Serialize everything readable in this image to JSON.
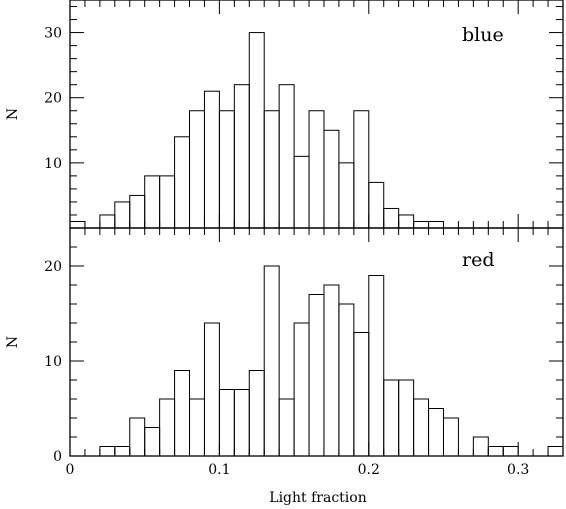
{
  "chart_data": [
    {
      "type": "bar",
      "panel": "top",
      "label": "blue",
      "ylabel": "N",
      "xlim": [
        0,
        0.33
      ],
      "ylim": [
        0,
        35
      ],
      "yticks": [
        10,
        20,
        30
      ],
      "bin_width": 0.01,
      "bins": [
        {
          "x0": 0.0,
          "value": 1
        },
        {
          "x0": 0.01,
          "value": 0
        },
        {
          "x0": 0.02,
          "value": 2
        },
        {
          "x0": 0.03,
          "value": 4
        },
        {
          "x0": 0.04,
          "value": 5
        },
        {
          "x0": 0.05,
          "value": 8
        },
        {
          "x0": 0.06,
          "value": 8
        },
        {
          "x0": 0.07,
          "value": 14
        },
        {
          "x0": 0.08,
          "value": 18
        },
        {
          "x0": 0.09,
          "value": 21
        },
        {
          "x0": 0.1,
          "value": 18
        },
        {
          "x0": 0.11,
          "value": 22
        },
        {
          "x0": 0.12,
          "value": 30
        },
        {
          "x0": 0.13,
          "value": 18
        },
        {
          "x0": 0.14,
          "value": 22
        },
        {
          "x0": 0.15,
          "value": 11
        },
        {
          "x0": 0.16,
          "value": 18
        },
        {
          "x0": 0.17,
          "value": 15
        },
        {
          "x0": 0.18,
          "value": 10
        },
        {
          "x0": 0.19,
          "value": 18
        },
        {
          "x0": 0.2,
          "value": 7
        },
        {
          "x0": 0.21,
          "value": 3
        },
        {
          "x0": 0.22,
          "value": 2
        },
        {
          "x0": 0.23,
          "value": 1
        },
        {
          "x0": 0.24,
          "value": 1
        }
      ]
    },
    {
      "type": "bar",
      "panel": "bottom",
      "label": "red",
      "ylabel": "N",
      "xlabel": "Light fraction",
      "xlim": [
        0,
        0.33
      ],
      "ylim": [
        0,
        24
      ],
      "yticks": [
        0,
        10,
        20
      ],
      "xticks": [
        0,
        0.1,
        0.2,
        0.3
      ],
      "xticklabels": [
        "0",
        "0.1",
        "0.2",
        "0.3"
      ],
      "bin_width": 0.01,
      "bins": [
        {
          "x0": 0.02,
          "value": 1
        },
        {
          "x0": 0.03,
          "value": 1
        },
        {
          "x0": 0.04,
          "value": 4
        },
        {
          "x0": 0.05,
          "value": 3
        },
        {
          "x0": 0.06,
          "value": 6
        },
        {
          "x0": 0.07,
          "value": 9
        },
        {
          "x0": 0.08,
          "value": 6
        },
        {
          "x0": 0.09,
          "value": 14
        },
        {
          "x0": 0.1,
          "value": 7
        },
        {
          "x0": 0.11,
          "value": 7
        },
        {
          "x0": 0.12,
          "value": 9
        },
        {
          "x0": 0.13,
          "value": 20
        },
        {
          "x0": 0.14,
          "value": 6
        },
        {
          "x0": 0.15,
          "value": 14
        },
        {
          "x0": 0.16,
          "value": 17
        },
        {
          "x0": 0.17,
          "value": 18
        },
        {
          "x0": 0.18,
          "value": 16
        },
        {
          "x0": 0.19,
          "value": 13
        },
        {
          "x0": 0.2,
          "value": 19
        },
        {
          "x0": 0.21,
          "value": 8
        },
        {
          "x0": 0.22,
          "value": 8
        },
        {
          "x0": 0.23,
          "value": 6
        },
        {
          "x0": 0.24,
          "value": 5
        },
        {
          "x0": 0.25,
          "value": 4
        },
        {
          "x0": 0.26,
          "value": 0
        },
        {
          "x0": 0.27,
          "value": 2
        },
        {
          "x0": 0.28,
          "value": 1
        },
        {
          "x0": 0.29,
          "value": 1
        },
        {
          "x0": 0.32,
          "value": 1
        }
      ]
    }
  ]
}
